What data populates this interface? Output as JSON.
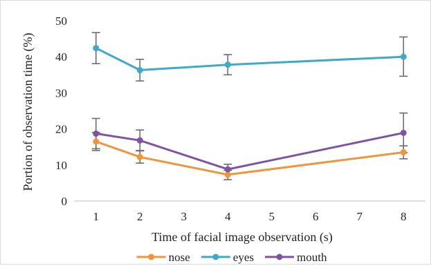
{
  "chart_data": {
    "type": "line",
    "title": "",
    "xlabel": "Time of facial image observation (s)",
    "ylabel": "Portion of observation time (%)",
    "x_ticks": [
      1,
      2,
      3,
      4,
      5,
      6,
      7,
      8
    ],
    "y_ticks": [
      0,
      10,
      20,
      30,
      40,
      50
    ],
    "xlim": [
      0.5,
      8.5
    ],
    "ylim": [
      0,
      50
    ],
    "grid": false,
    "legend_position": "bottom",
    "series": [
      {
        "name": "nose",
        "color": "#f0953b",
        "x": [
          1,
          2,
          4,
          8
        ],
        "y": [
          16.5,
          12.2,
          7.3,
          13.5
        ],
        "err_low": [
          2.5,
          1.7,
          1.4,
          1.8
        ],
        "err_high": [
          2.5,
          1.8,
          1.2,
          1.8
        ]
      },
      {
        "name": "eyes",
        "color": "#3ea9c8",
        "x": [
          1,
          2,
          4,
          8
        ],
        "y": [
          42.4,
          36.3,
          37.8,
          40.0
        ],
        "err_low": [
          4.3,
          3.0,
          2.8,
          5.4
        ],
        "err_high": [
          4.3,
          3.0,
          2.8,
          5.5
        ]
      },
      {
        "name": "mouth",
        "color": "#7e53a4",
        "x": [
          1,
          2,
          4,
          8
        ],
        "y": [
          18.7,
          16.8,
          8.8,
          18.9
        ],
        "err_low": [
          4.2,
          2.9,
          1.4,
          5.5
        ],
        "err_high": [
          4.2,
          2.9,
          1.4,
          5.5
        ]
      }
    ]
  }
}
